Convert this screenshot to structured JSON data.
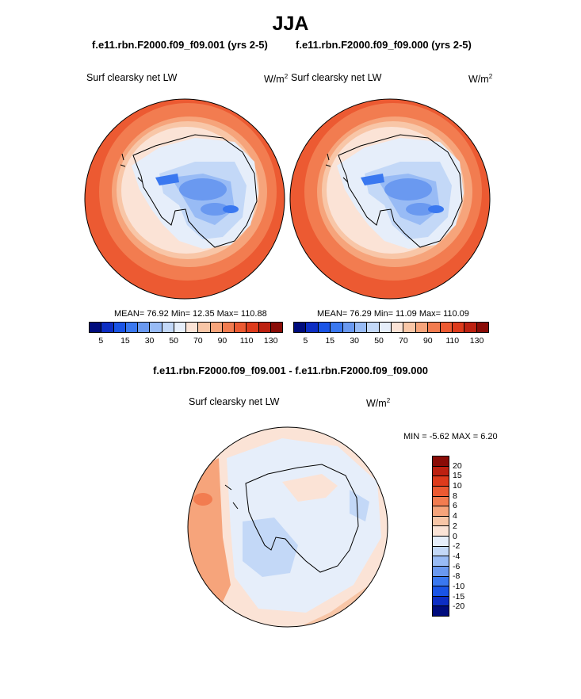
{
  "title": "JJA",
  "panels": [
    {
      "case": "f.e11.rbn.F2000.f09_f09.001 (yrs 2-5)",
      "label": "Surf clearsky net LW",
      "units_base": "W/m",
      "units_exp": "2",
      "mean": "MEAN=  76.92  Min=  12.35  Max= 110.88"
    },
    {
      "case": "f.e11.rbn.F2000.f09_f09.000 (yrs 2-5)",
      "label": "Surf clearsky net LW",
      "units_base": "W/m",
      "units_exp": "2",
      "mean": "MEAN=  76.29  Min=  11.09  Max= 110.09"
    }
  ],
  "abs_colorbar": {
    "colors": [
      "#000c7d",
      "#0d2ec4",
      "#1a54e6",
      "#3a78f0",
      "#6a99f0",
      "#98bbf5",
      "#c3d8f7",
      "#e6eefa",
      "#fbe3d6",
      "#f8c6a7",
      "#f6a47b",
      "#f27c50",
      "#ec5a32",
      "#de3b1c",
      "#bd2111",
      "#8a0c07"
    ],
    "labels": [
      "5",
      "15",
      "30",
      "50",
      "70",
      "90",
      "110",
      "130"
    ]
  },
  "diff": {
    "title": "f.e11.rbn.F2000.f09_f09.001 - f.e11.rbn.F2000.f09_f09.000",
    "label": "Surf clearsky net LW",
    "units_base": "W/m",
    "units_exp": "2",
    "minmax": "MIN =  -5.62 MAX =   6.20",
    "colorbar": {
      "colors": [
        "#8a0c07",
        "#bd2111",
        "#de3b1c",
        "#ec5a32",
        "#f27c50",
        "#f6a47b",
        "#f8c6a7",
        "#fbe3d6",
        "#e6eefa",
        "#c3d8f7",
        "#98bbf5",
        "#6a99f0",
        "#3a78f0",
        "#1a54e6",
        "#0d2ec4",
        "#000c7d"
      ],
      "labels": [
        "20",
        "15",
        "10",
        "8",
        "6",
        "4",
        "2",
        "0",
        "-2",
        "-4",
        "-6",
        "-8",
        "-10",
        "-15",
        "-20"
      ]
    }
  },
  "colors": {
    "ocean_high": "#ec5a32",
    "ocean_mid": "#f6a47b",
    "sea_ice": "#fbe3d6",
    "land_low": "#98bbf5",
    "land_mid": "#c3d8f7",
    "land_deep": "#6a99f0"
  }
}
